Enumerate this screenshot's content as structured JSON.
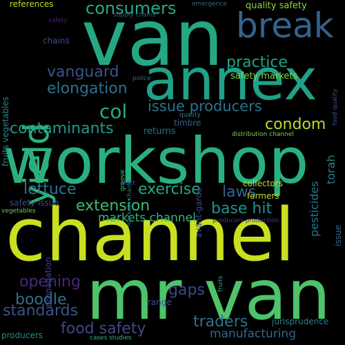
{
  "words": [
    {
      "text": "workshop",
      "color": "#2ab07f"
    },
    {
      "text": "channel",
      "color": "#c8e020"
    },
    {
      "text": "van",
      "color": "#26a784"
    },
    {
      "text": "mr van",
      "color": "#4ec36b"
    },
    {
      "text": "annex",
      "color": "#1fa287"
    },
    {
      "text": "break",
      "color": "#33638d"
    },
    {
      "text": "yield",
      "color": "#2db27d"
    },
    {
      "text": "consumers",
      "color": "#25ac82"
    },
    {
      "text": "practice",
      "color": "#20a386"
    },
    {
      "text": "vanguard",
      "color": "#3b528b"
    },
    {
      "text": "elongation",
      "color": "#2d708e"
    },
    {
      "text": "issue producers",
      "color": "#2c738e"
    },
    {
      "text": "col",
      "color": "#27ad81"
    },
    {
      "text": "condom",
      "color": "#b5de2b"
    },
    {
      "text": "contaminants",
      "color": "#1f9a8a"
    },
    {
      "text": "lettuce",
      "color": "#2a788e"
    },
    {
      "text": "exercise",
      "color": "#22a884"
    },
    {
      "text": "laws",
      "color": "#33638d"
    },
    {
      "text": "extension",
      "color": "#3dbc74"
    },
    {
      "text": "base hit",
      "color": "#20928c"
    },
    {
      "text": "markets channel",
      "color": "#35b779"
    },
    {
      "text": "opening",
      "color": "#482878"
    },
    {
      "text": "gaps",
      "color": "#3e4a89"
    },
    {
      "text": "boodle",
      "color": "#2d708e"
    },
    {
      "text": "standards",
      "color": "#3b528b"
    },
    {
      "text": "food safety",
      "color": "#3e4a89"
    },
    {
      "text": "traders",
      "color": "#2c728e"
    },
    {
      "text": "manufacturing",
      "color": "#31688e"
    },
    {
      "text": "quality safety",
      "color": "#8fd744"
    },
    {
      "text": "safety markets",
      "color": "#86d549"
    },
    {
      "text": "references",
      "color": "#bddf26"
    },
    {
      "text": "chains",
      "color": "#3e4989"
    },
    {
      "text": "supply chains",
      "color": "#3b528b"
    },
    {
      "text": "emergence",
      "color": "#31688e"
    },
    {
      "text": "safety",
      "color": "#482475"
    },
    {
      "text": "timbre",
      "color": "#33638d"
    },
    {
      "text": "returns",
      "color": "#2c728e"
    },
    {
      "text": "collectors",
      "color": "#bddf26"
    },
    {
      "text": "farmers",
      "color": "#c2df23"
    },
    {
      "text": "distribution channel",
      "color": "#7ad151"
    },
    {
      "text": "range",
      "color": "#3b528b"
    },
    {
      "text": "jurisprudence",
      "color": "#25848e"
    },
    {
      "text": "safety issue",
      "color": "#3e4989"
    },
    {
      "text": "vegetables",
      "color": "#6ece58"
    },
    {
      "text": "producers",
      "color": "#21918c"
    },
    {
      "text": "police",
      "color": "#31688e"
    },
    {
      "text": "quality",
      "color": "#26828e"
    },
    {
      "text": "duct",
      "color": "#3b528b"
    },
    {
      "text": "producers production",
      "color": "#443983"
    },
    {
      "text": "cases studies",
      "color": "#35b779"
    },
    {
      "text": "fruits vegetables",
      "color": "#23898e"
    },
    {
      "text": "torah",
      "color": "#26828e"
    },
    {
      "text": "pesticides",
      "color": "#2a768e"
    },
    {
      "text": "avant-garde",
      "color": "#3e4989"
    },
    {
      "text": "groove",
      "color": "#4ac16d"
    },
    {
      "text": "markets chains",
      "color": "#2a788e"
    },
    {
      "text": "propagation",
      "color": "#404688"
    },
    {
      "text": "fruits",
      "color": "#29af7f"
    },
    {
      "text": "issue",
      "color": "#2e6f8e"
    },
    {
      "text": "food quality",
      "color": "#3b528b"
    }
  ]
}
